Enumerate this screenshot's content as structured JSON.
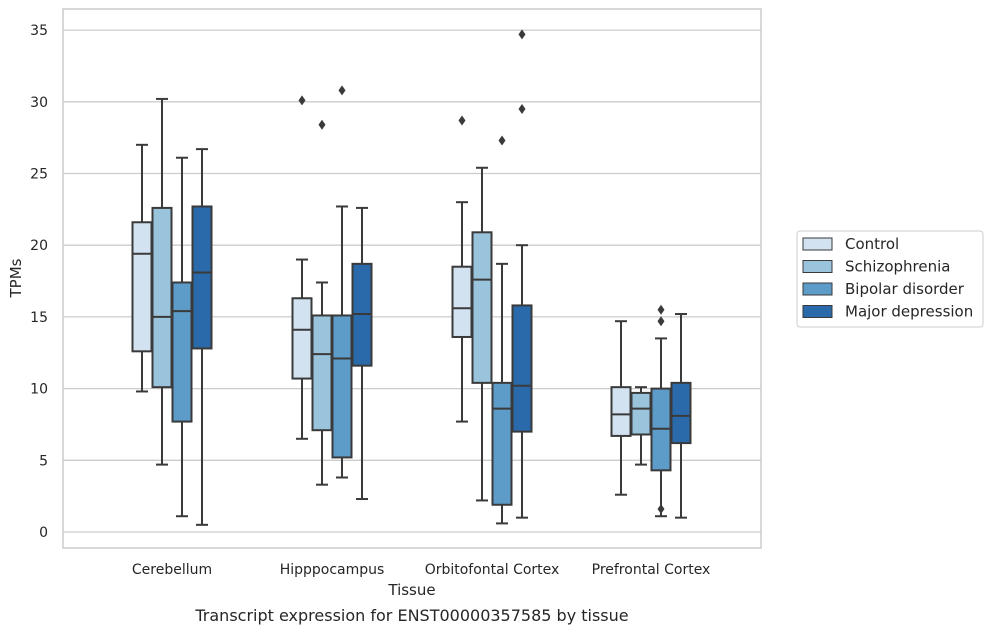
{
  "chart_data": {
    "type": "box",
    "title": "",
    "caption": "Transcript expression for ENST00000357585 by tissue",
    "xlabel": "Tissue",
    "ylabel": "TPMs",
    "ylim": [
      -1,
      36
    ],
    "yticks": [
      0,
      5,
      10,
      15,
      20,
      25,
      30,
      35
    ],
    "grid": "horizontal",
    "legend_position": "right",
    "categories": [
      "Cerebellum",
      "Hipppocampus",
      "Orbitofontal Cortex",
      "Prefrontal Cortex"
    ],
    "series": [
      {
        "name": "Control",
        "color": "#d2e2f1",
        "boxes": [
          {
            "whisker_low": 9.8,
            "q1": 12.6,
            "median": 19.4,
            "q3": 21.6,
            "whisker_high": 27.0,
            "outliers": []
          },
          {
            "whisker_low": 6.5,
            "q1": 10.7,
            "median": 14.1,
            "q3": 16.3,
            "whisker_high": 19.0,
            "outliers": [
              30.1
            ]
          },
          {
            "whisker_low": 7.7,
            "q1": 13.6,
            "median": 15.6,
            "q3": 18.5,
            "whisker_high": 23.0,
            "outliers": [
              28.7
            ]
          },
          {
            "whisker_low": 2.6,
            "q1": 6.7,
            "median": 8.2,
            "q3": 10.1,
            "whisker_high": 14.7,
            "outliers": []
          }
        ]
      },
      {
        "name": "Schizophrenia",
        "color": "#9ac3dc",
        "boxes": [
          {
            "whisker_low": 4.7,
            "q1": 10.1,
            "median": 15.0,
            "q3": 22.6,
            "whisker_high": 30.2,
            "outliers": []
          },
          {
            "whisker_low": 3.3,
            "q1": 7.1,
            "median": 12.4,
            "q3": 15.1,
            "whisker_high": 17.4,
            "outliers": [
              28.4
            ]
          },
          {
            "whisker_low": 2.2,
            "q1": 10.4,
            "median": 17.6,
            "q3": 20.9,
            "whisker_high": 25.4,
            "outliers": []
          },
          {
            "whisker_low": 4.7,
            "q1": 6.8,
            "median": 8.6,
            "q3": 9.7,
            "whisker_high": 10.1,
            "outliers": []
          }
        ]
      },
      {
        "name": "Bipolar disorder",
        "color": "#5d9bc9",
        "boxes": [
          {
            "whisker_low": 1.1,
            "q1": 7.7,
            "median": 15.4,
            "q3": 17.4,
            "whisker_high": 26.1,
            "outliers": []
          },
          {
            "whisker_low": 3.8,
            "q1": 5.2,
            "median": 12.1,
            "q3": 15.1,
            "whisker_high": 22.7,
            "outliers": [
              30.8
            ]
          },
          {
            "whisker_low": 0.6,
            "q1": 1.9,
            "median": 8.6,
            "q3": 10.4,
            "whisker_high": 18.7,
            "outliers": [
              27.3
            ]
          },
          {
            "whisker_low": 1.1,
            "q1": 4.3,
            "median": 7.2,
            "q3": 10.0,
            "whisker_high": 13.5,
            "outliers": [
              15.5,
              14.7,
              1.6
            ]
          }
        ]
      },
      {
        "name": "Major depression",
        "color": "#2a6aab",
        "boxes": [
          {
            "whisker_low": 0.5,
            "q1": 12.8,
            "median": 18.1,
            "q3": 22.7,
            "whisker_high": 26.7,
            "outliers": []
          },
          {
            "whisker_low": 2.3,
            "q1": 11.6,
            "median": 15.2,
            "q3": 18.7,
            "whisker_high": 22.6,
            "outliers": []
          },
          {
            "whisker_low": 1.0,
            "q1": 7.0,
            "median": 10.2,
            "q3": 15.8,
            "whisker_high": 20.0,
            "outliers": [
              29.5,
              34.7
            ]
          },
          {
            "whisker_low": 1.0,
            "q1": 6.2,
            "median": 8.1,
            "q3": 10.4,
            "whisker_high": 15.2,
            "outliers": []
          }
        ]
      }
    ]
  }
}
